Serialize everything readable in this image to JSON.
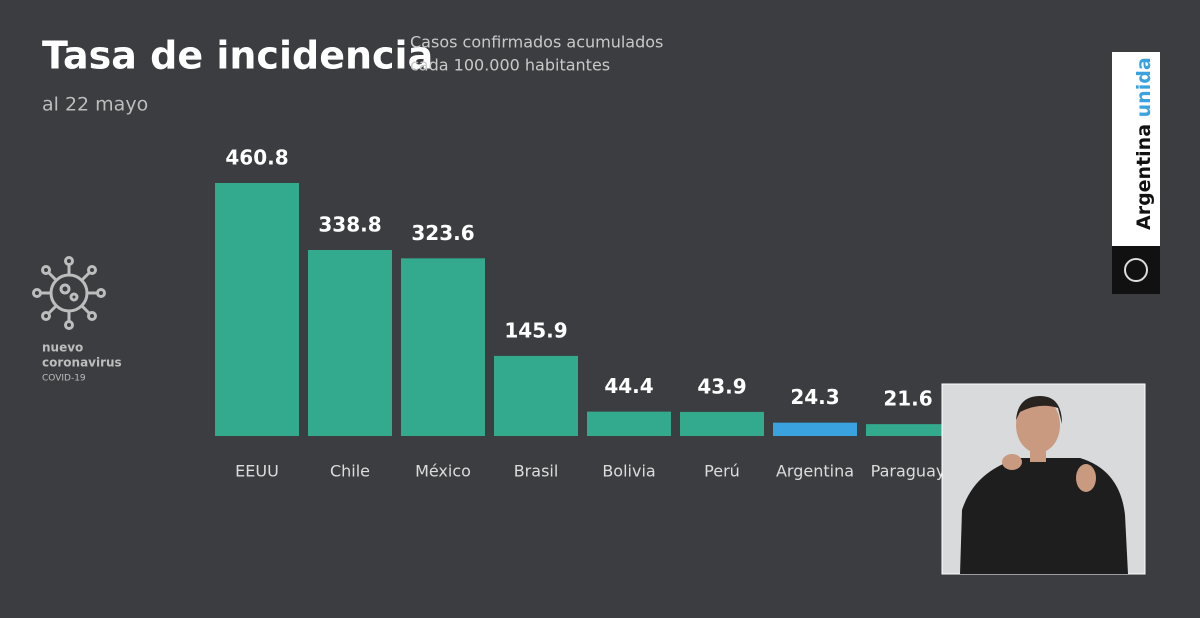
{
  "chart_data": {
    "type": "bar",
    "title": "Tasa de incidencia",
    "subtitle": [
      "Casos confirmados acumulados",
      "cada 100.000 habitantes"
    ],
    "date_note": "al 22 mayo",
    "categories": [
      "EEUU",
      "Chile",
      "México",
      "Brasil",
      "Bolivia",
      "Perú",
      "Argentina",
      "Paraguay"
    ],
    "values": [
      460.8,
      338.8,
      323.6,
      145.9,
      44.4,
      43.9,
      24.3,
      21.6
    ],
    "colors": [
      "#33a98d",
      "#33a98d",
      "#33a98d",
      "#33a98d",
      "#33a98d",
      "#33a98d",
      "#3aa2de",
      "#33a98d"
    ],
    "logo": [
      "nuevo",
      "coronavirus",
      "COVID-19"
    ],
    "brand": [
      "Argentina",
      "unida"
    ]
  }
}
